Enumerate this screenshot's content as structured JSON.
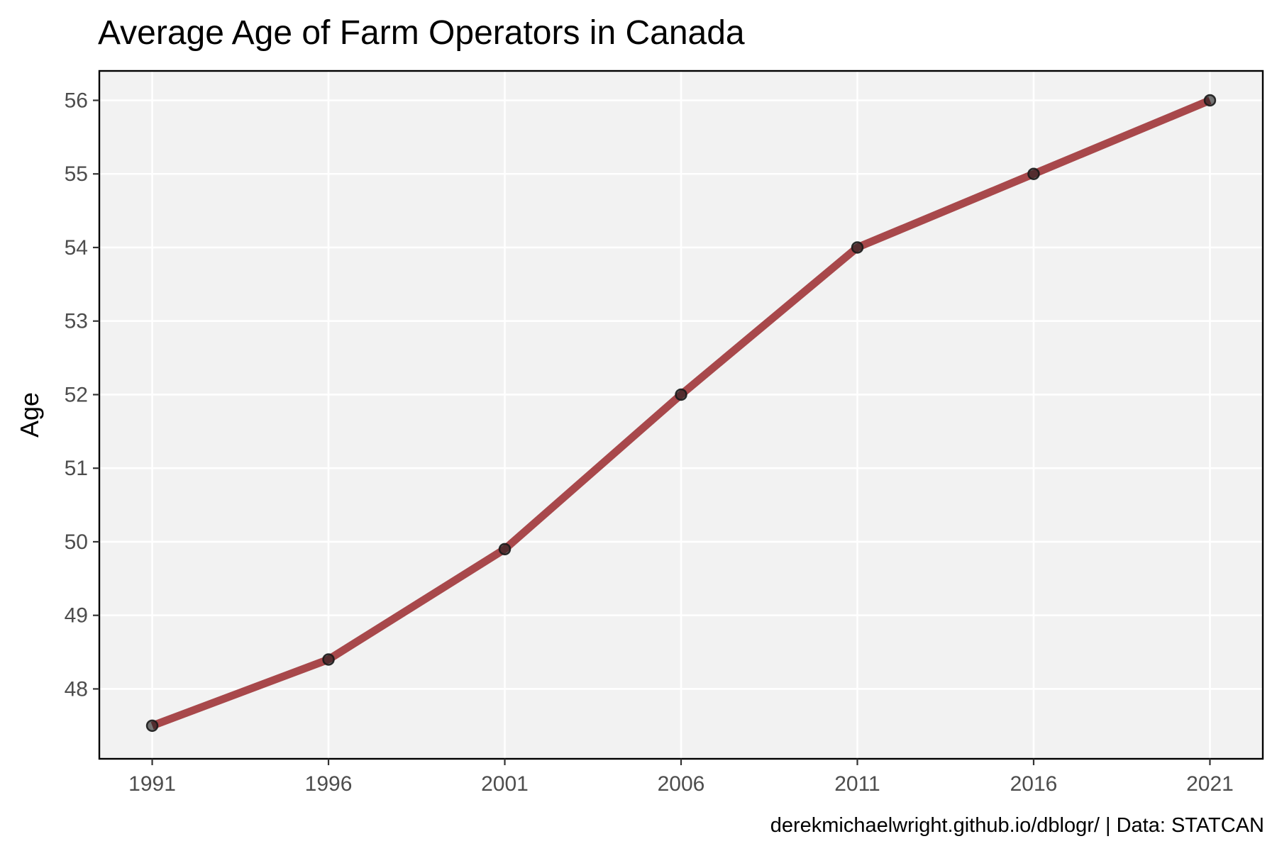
{
  "chart_data": {
    "type": "line",
    "title": "Average Age of Farm Operators in Canada",
    "xlabel": "",
    "ylabel": "Age",
    "caption": "derekmichaelwright.github.io/dblogr/ | Data: STATCAN",
    "x": [
      1991,
      1996,
      2001,
      2006,
      2011,
      2016,
      2021
    ],
    "x_tick_labels": [
      "1991",
      "1996",
      "2001",
      "2006",
      "2011",
      "2016",
      "2021"
    ],
    "y_ticks": [
      48,
      49,
      50,
      51,
      52,
      53,
      54,
      55,
      56
    ],
    "y_tick_labels": [
      "48",
      "49",
      "50",
      "51",
      "52",
      "53",
      "54",
      "55",
      "56"
    ],
    "series": [
      {
        "values": [
          47.5,
          48.4,
          49.9,
          52.0,
          54.0,
          55.0,
          56.0
        ],
        "line_color": "#a8484b",
        "point_color": "#1a1a1a"
      }
    ],
    "xlim": [
      1989.5,
      2022.5
    ],
    "ylim": [
      47.05,
      56.4
    ],
    "grid": true,
    "panel_background": "#f2f2f2",
    "grid_color": "#ffffff",
    "legend": "none"
  }
}
